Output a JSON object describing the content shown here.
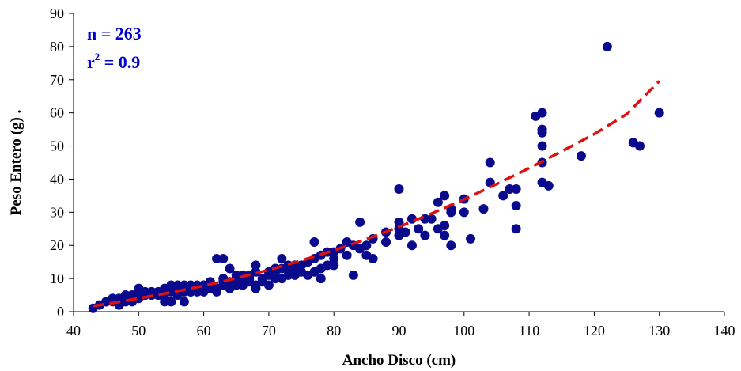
{
  "chart_data": {
    "type": "scatter",
    "title": "",
    "xlabel": "Ancho Disco (cm)",
    "ylabel": "Peso Entero (g) .",
    "xlim": [
      40,
      140
    ],
    "ylim": [
      0,
      90
    ],
    "xticks": [
      "40",
      "50",
      "60",
      "70",
      "80",
      "90",
      "100",
      "110",
      "120",
      "130",
      "140"
    ],
    "yticks": [
      "0",
      "10",
      "20",
      "30",
      "40",
      "50",
      "60",
      "70",
      "80",
      "90"
    ],
    "grid": false,
    "legend": "none",
    "annotations": {
      "n_label": "n = 263",
      "r_label": "r",
      "r_sup": "2",
      "r_value": " = 0.9"
    },
    "colors": {
      "points": "#0a0a8c",
      "trend": "#e01010",
      "annotation": "#0000cc"
    },
    "series": [
      {
        "kind": "points",
        "x": [
          43,
          44,
          45,
          45,
          46,
          46,
          47,
          47,
          47,
          48,
          48,
          48,
          49,
          49,
          49,
          50,
          50,
          50,
          51,
          51,
          51,
          52,
          52,
          52,
          53,
          53,
          53,
          54,
          54,
          54,
          54,
          55,
          55,
          55,
          55,
          56,
          56,
          56,
          56,
          57,
          57,
          57,
          57,
          58,
          58,
          58,
          58,
          59,
          59,
          59,
          60,
          60,
          60,
          61,
          61,
          61,
          62,
          62,
          62,
          63,
          63,
          63,
          63,
          64,
          64,
          64,
          65,
          65,
          65,
          66,
          66,
          66,
          67,
          67,
          67,
          68,
          68,
          68,
          68,
          69,
          69,
          70,
          70,
          70,
          71,
          71,
          71,
          72,
          72,
          72,
          73,
          73,
          73,
          74,
          74,
          74,
          75,
          75,
          76,
          76,
          77,
          77,
          77,
          78,
          78,
          78,
          79,
          79,
          80,
          80,
          80,
          81,
          82,
          82,
          83,
          83,
          84,
          84,
          85,
          85,
          86,
          86,
          88,
          88,
          90,
          90,
          90,
          90,
          91,
          92,
          92,
          93,
          94,
          94,
          95,
          96,
          96,
          97,
          97,
          97,
          98,
          98,
          98,
          100,
          100,
          101,
          103,
          104,
          104,
          106,
          107,
          108,
          108,
          108,
          111,
          112,
          112,
          112,
          112,
          112,
          112,
          113,
          118,
          122,
          126,
          127,
          130
        ],
        "y": [
          1,
          2,
          3,
          3,
          3,
          4,
          2,
          3,
          4,
          3,
          4,
          5,
          3,
          4,
          5,
          4,
          5,
          7,
          5,
          6,
          5,
          5,
          6,
          5,
          5,
          6,
          5,
          4,
          6,
          7,
          3,
          6,
          7,
          8,
          3,
          5,
          6,
          7,
          8,
          6,
          7,
          3,
          8,
          6,
          7,
          8,
          6,
          7,
          8,
          6,
          6,
          7,
          8,
          7,
          8,
          9,
          6,
          7,
          16,
          8,
          9,
          10,
          16,
          7,
          9,
          13,
          8,
          10,
          11,
          8,
          10,
          11,
          9,
          10,
          11,
          7,
          8,
          12,
          14,
          9,
          10,
          8,
          11,
          12,
          10,
          12,
          13,
          10,
          13,
          16,
          11,
          13,
          14,
          11,
          13,
          14,
          12,
          14,
          11,
          15,
          12,
          16,
          21,
          10,
          13,
          17,
          14,
          18,
          14,
          16,
          18,
          19,
          17,
          21,
          11,
          20,
          27,
          19,
          17,
          20,
          16,
          22,
          24,
          21,
          23,
          25,
          27,
          37,
          24,
          20,
          28,
          25,
          23,
          28,
          28,
          25,
          33,
          23,
          26,
          35,
          30,
          20,
          31,
          30,
          34,
          22,
          31,
          39,
          45,
          35,
          37,
          25,
          32,
          37,
          59,
          39,
          45,
          50,
          54,
          55,
          60,
          38,
          47,
          80,
          51,
          50,
          60
        ]
      },
      {
        "kind": "trend",
        "x": [
          43,
          46,
          50,
          55,
          60,
          65,
          70,
          75,
          80,
          85,
          90,
          95,
          100,
          105,
          110,
          115,
          120,
          125,
          130
        ],
        "y": [
          1.7,
          2.6,
          4.0,
          5.8,
          7.8,
          10.1,
          12.6,
          15.4,
          18.5,
          21.9,
          25.6,
          29.6,
          33.9,
          38.5,
          43.3,
          48.4,
          53.6,
          59.6,
          69.6
        ]
      }
    ]
  }
}
